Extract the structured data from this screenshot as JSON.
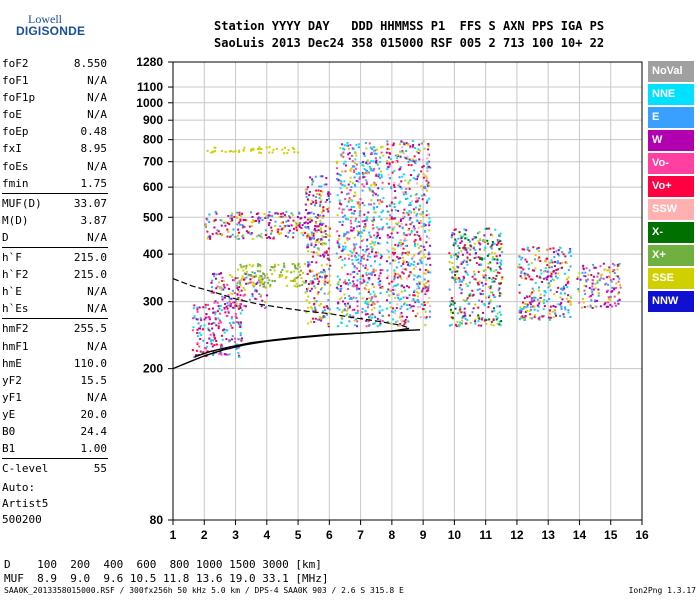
{
  "logo": {
    "line1": "Lowell",
    "line2": "DIGISONDE"
  },
  "header": {
    "row1": "Station YYYY DAY   DDD HHMMSS P1  FFS S AXN PPS IGA PS",
    "row2": "SaoLuis 2013 Dec24 358 015000 RSF 005 2 713 100 10+ 22"
  },
  "params": [
    {
      "name": "foF2",
      "value": "8.550"
    },
    {
      "name": "foF1",
      "value": "N/A"
    },
    {
      "name": "foF1p",
      "value": "N/A"
    },
    {
      "name": "foE",
      "value": "N/A"
    },
    {
      "name": "foEp",
      "value": "0.48"
    },
    {
      "name": "fxI",
      "value": "8.95"
    },
    {
      "name": "foEs",
      "value": "N/A"
    },
    {
      "name": "fmin",
      "value": "1.75"
    },
    {
      "name": "MUF(D)",
      "value": "33.07"
    },
    {
      "name": "M(D)",
      "value": "3.87"
    },
    {
      "name": "D",
      "value": "N/A"
    },
    {
      "name": "h`F",
      "value": "215.0"
    },
    {
      "name": "h`F2",
      "value": "215.0"
    },
    {
      "name": "h`E",
      "value": "N/A"
    },
    {
      "name": "h`Es",
      "value": "N/A"
    },
    {
      "name": "hmF2",
      "value": "255.5"
    },
    {
      "name": "hmF1",
      "value": "N/A"
    },
    {
      "name": "hmE",
      "value": "110.0"
    },
    {
      "name": "yF2",
      "value": "15.5"
    },
    {
      "name": "yF1",
      "value": "N/A"
    },
    {
      "name": "yE",
      "value": "20.0"
    },
    {
      "name": "B0",
      "value": "24.4"
    },
    {
      "name": "B1",
      "value": "1.00"
    },
    {
      "name": "C-level",
      "value": "55"
    }
  ],
  "auto": {
    "line1": "Auto:",
    "line2": "Artist5",
    "line3": "500200"
  },
  "legend": [
    {
      "label": "NoVal",
      "color": "#a0a0a0"
    },
    {
      "label": "NNE",
      "color": "#00e0ff"
    },
    {
      "label": "E",
      "color": "#3aa0ff"
    },
    {
      "label": "W",
      "color": "#b000b0"
    },
    {
      "label": "Vo-",
      "color": "#ff40a0"
    },
    {
      "label": "Vo+",
      "color": "#ff0040"
    },
    {
      "label": "SSW",
      "color": "#ffb0b0"
    },
    {
      "label": "X-",
      "color": "#007000"
    },
    {
      "label": "X+",
      "color": "#70b040"
    },
    {
      "label": "SSE",
      "color": "#d0d000"
    },
    {
      "label": "NNW",
      "color": "#1010d0"
    }
  ],
  "bottom": {
    "d_line": "D    100  200  400  600  800 1000 1500 3000 [km]",
    "muf_line": "MUF  8.9  9.0  9.6 10.5 11.8 13.6 19.0 33.1 [MHz]"
  },
  "footer": "SAA0K_2013358015000.RSF / 300fx256h 50 kHz 5.0 km / DPS-4 SAA0K 903 / 2.6 S 315.8 E",
  "version": "Ion2Png 1.3.17",
  "chart_data": {
    "type": "scatter",
    "title": "",
    "xlabel": "",
    "ylabel": "",
    "xlim": [
      1,
      16
    ],
    "ylim": [
      80,
      1280
    ],
    "y_scale": "log",
    "x_ticks": [
      1,
      2,
      3,
      4,
      5,
      6,
      7,
      8,
      9,
      10,
      11,
      12,
      13,
      14,
      15,
      16
    ],
    "y_ticks": [
      80,
      200,
      300,
      400,
      500,
      600,
      700,
      800,
      900,
      1000,
      1100,
      1280
    ],
    "grid": true,
    "legend_position": "right",
    "traces": [
      {
        "name": "O-trace",
        "color": "#000000",
        "points": [
          [
            1.7,
            215
          ],
          [
            2.2,
            222
          ],
          [
            2.8,
            228
          ],
          [
            3.5,
            234
          ],
          [
            4.2,
            238
          ],
          [
            5.0,
            242
          ],
          [
            6.0,
            246
          ],
          [
            7.0,
            248
          ],
          [
            8.0,
            251
          ],
          [
            8.55,
            255
          ]
        ]
      },
      {
        "name": "X-trace",
        "color": "#000000",
        "points": [
          [
            1.0,
            200
          ],
          [
            1.5,
            208
          ],
          [
            2.0,
            216
          ],
          [
            2.6,
            224
          ],
          [
            3.3,
            231
          ],
          [
            4.0,
            236
          ],
          [
            5.0,
            241
          ],
          [
            6.0,
            245
          ],
          [
            7.0,
            248
          ],
          [
            8.0,
            251
          ],
          [
            8.9,
            253
          ]
        ]
      }
    ],
    "profile": [
      [
        1.0,
        345
      ],
      [
        1.6,
        330
      ],
      [
        2.3,
        318
      ],
      [
        3.0,
        305
      ],
      [
        3.7,
        296
      ],
      [
        4.5,
        289
      ],
      [
        5.3,
        283
      ],
      [
        6.0,
        279
      ],
      [
        6.8,
        272
      ],
      [
        7.6,
        266
      ],
      [
        8.3,
        260
      ],
      [
        8.55,
        256
      ]
    ],
    "echo_clusters": [
      {
        "x": [
          1.6,
          3.2
        ],
        "y": [
          215,
          300
        ],
        "colors": [
          "W",
          "Vo+",
          "E",
          "NNE",
          "Vo-"
        ]
      },
      {
        "x": [
          2.2,
          4.0
        ],
        "y": [
          290,
          360
        ],
        "colors": [
          "SSE",
          "W",
          "E",
          "Vo-"
        ]
      },
      {
        "x": [
          3.0,
          5.2
        ],
        "y": [
          330,
          380
        ],
        "colors": [
          "SSE",
          "X+"
        ]
      },
      {
        "x": [
          2.0,
          5.8
        ],
        "y": [
          440,
          520
        ],
        "colors": [
          "SSE",
          "W",
          "Vo+",
          "E"
        ]
      },
      {
        "x": [
          2.0,
          5.0
        ],
        "y": [
          740,
          770
        ],
        "colors": [
          "SSE"
        ]
      },
      {
        "x": [
          5.2,
          6.0
        ],
        "y": [
          260,
          650
        ],
        "colors": [
          "W",
          "E",
          "Vo+",
          "SSE"
        ]
      },
      {
        "x": [
          6.2,
          7.7
        ],
        "y": [
          260,
          790
        ],
        "colors": [
          "W",
          "E",
          "Vo-",
          "SSE",
          "NNE"
        ]
      },
      {
        "x": [
          7.8,
          9.2
        ],
        "y": [
          260,
          800
        ],
        "colors": [
          "NNE",
          "E",
          "W",
          "Vo+",
          "SSW",
          "SSE"
        ]
      },
      {
        "x": [
          9.8,
          11.5
        ],
        "y": [
          260,
          470
        ],
        "colors": [
          "NNE",
          "E",
          "W",
          "Vo+",
          "SSE",
          "X-"
        ]
      },
      {
        "x": [
          12.0,
          13.7
        ],
        "y": [
          270,
          420
        ],
        "colors": [
          "NNE",
          "E",
          "W",
          "Vo+",
          "SSE"
        ]
      },
      {
        "x": [
          13.9,
          15.3
        ],
        "y": [
          290,
          380
        ],
        "colors": [
          "E",
          "W",
          "Vo-",
          "SSE"
        ]
      }
    ]
  }
}
